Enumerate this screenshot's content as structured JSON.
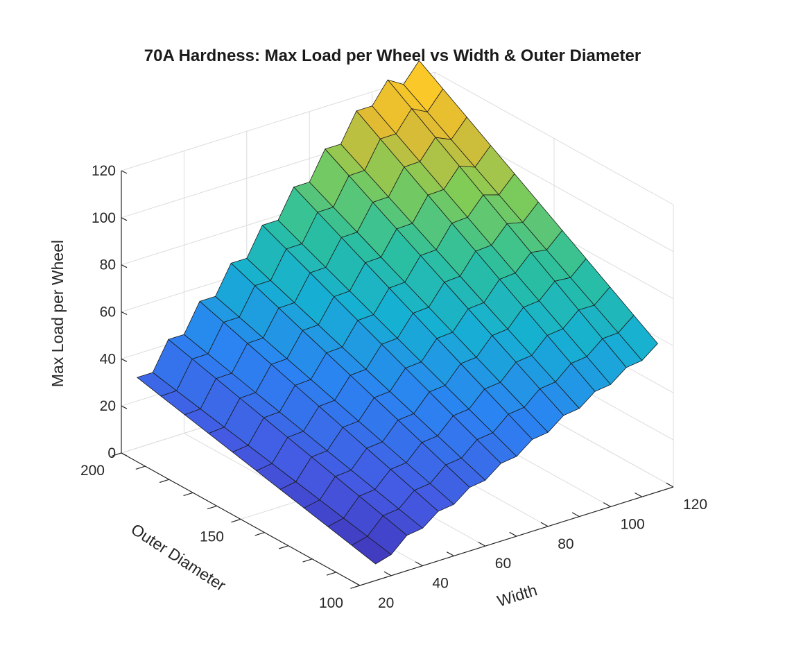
{
  "chart_data": {
    "type": "surface",
    "title": "70A Hardness: Max Load per Wheel vs Width & Outer Diameter",
    "xlabel": "Width",
    "ylabel": "Outer Diameter",
    "zlabel": "Max Load per Wheel",
    "x_ticks": [
      "20",
      "40",
      "60",
      "80",
      "100",
      "120"
    ],
    "y_ticks": [
      "100",
      "150",
      "200"
    ],
    "z_ticks": [
      "0",
      "20",
      "40",
      "60",
      "80",
      "100",
      "120"
    ],
    "xlim": [
      20,
      120
    ],
    "ylim": [
      100,
      200
    ],
    "zlim": [
      0,
      120
    ],
    "grid": true,
    "colormap": "parula",
    "width_values": [
      25,
      30,
      35,
      40,
      45,
      50,
      55,
      60,
      65,
      70,
      75,
      80,
      85,
      90,
      95,
      100,
      105,
      110,
      115
    ],
    "diameter_values": [
      100,
      110,
      120,
      130,
      140,
      150,
      160,
      170,
      180,
      190,
      200
    ],
    "load_at_min_diameter": [
      6,
      10,
      14,
      17,
      20,
      23,
      26,
      29,
      32,
      35,
      38,
      41,
      44,
      47,
      50,
      53,
      56,
      59,
      62
    ],
    "load_at_max_diameter": [
      27,
      33,
      39,
      45,
      51,
      57,
      63,
      69,
      75,
      81,
      87,
      93,
      99,
      105,
      111,
      117,
      120,
      122,
      124
    ],
    "ridge_amplitude": 6,
    "ridge_period_width": 10
  }
}
